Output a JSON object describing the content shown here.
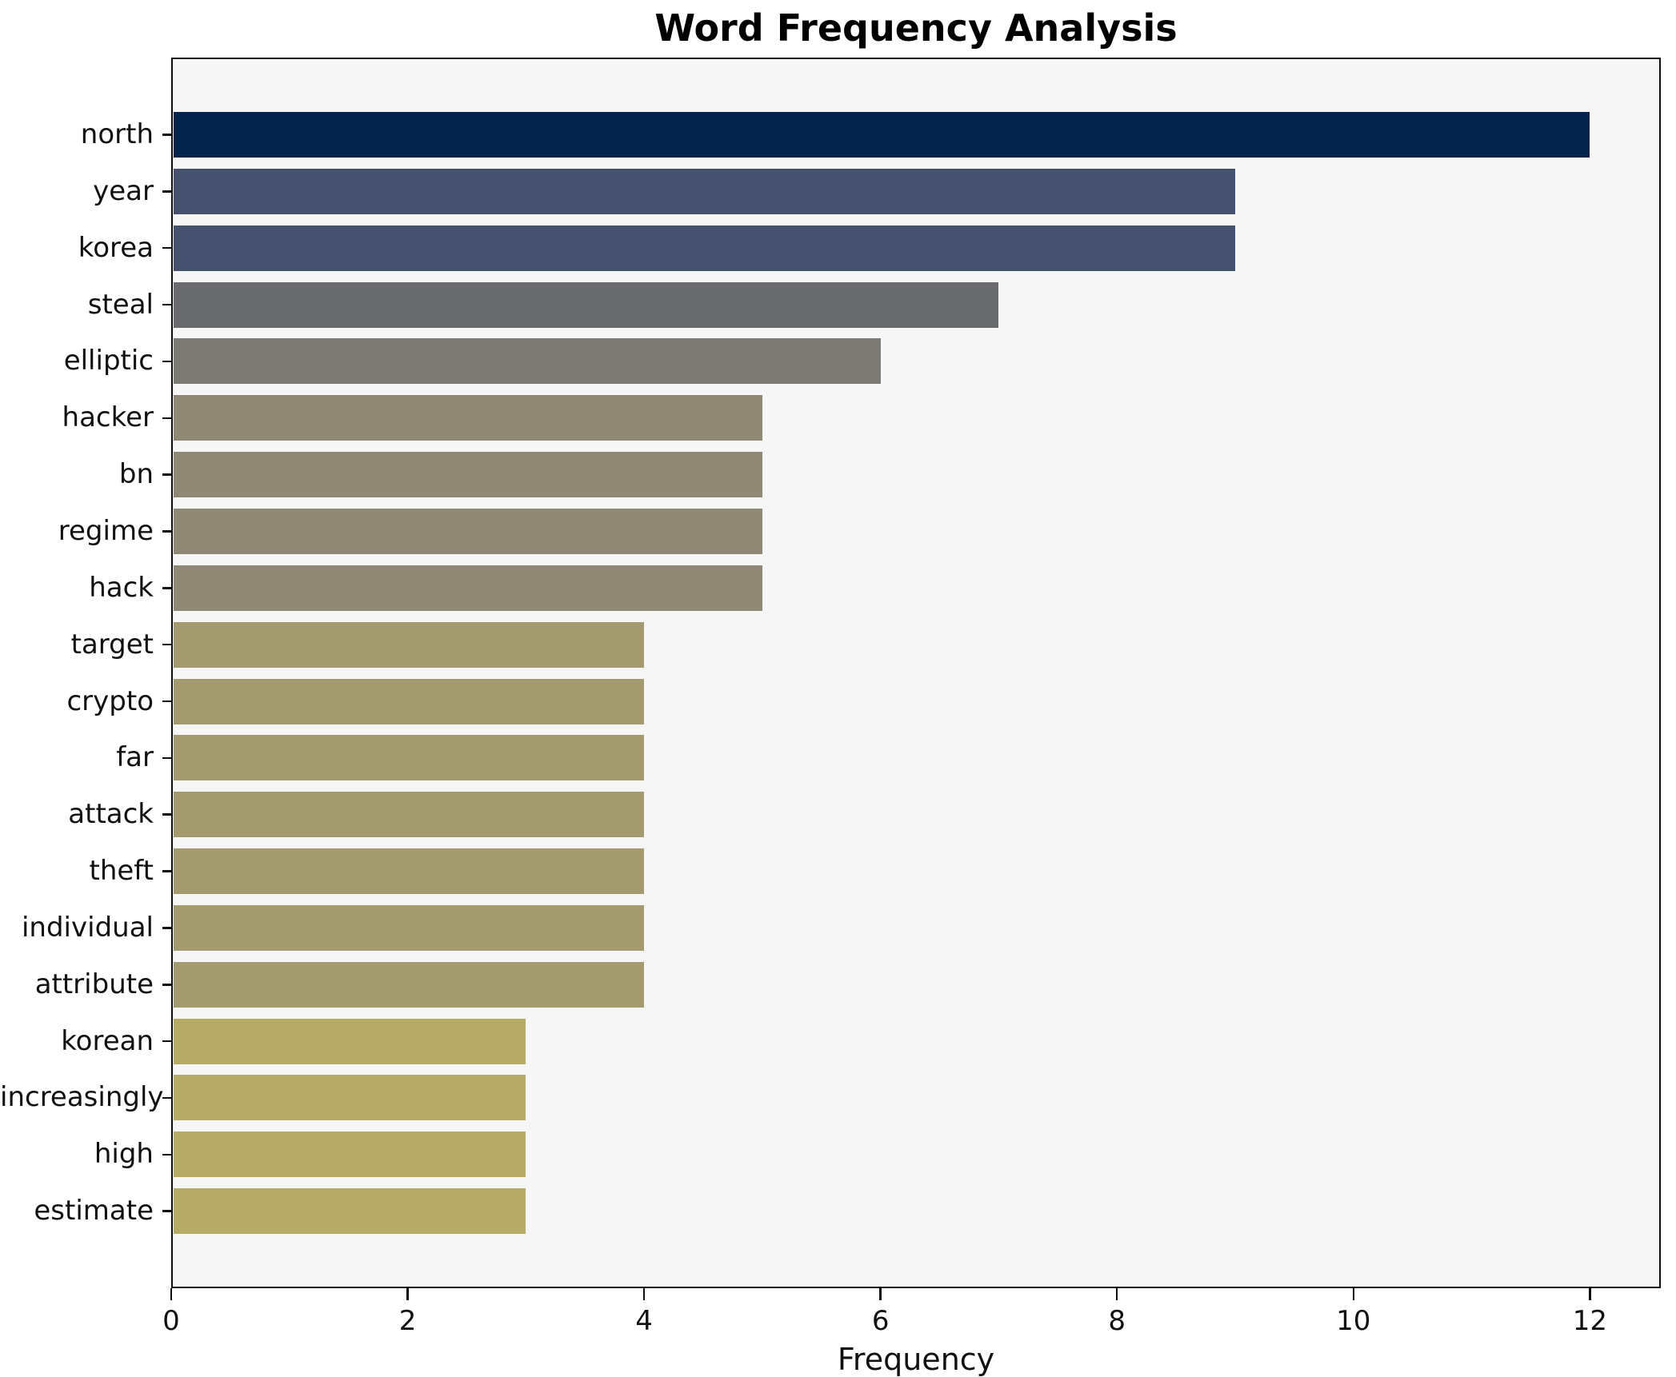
{
  "chart_data": {
    "type": "bar",
    "orientation": "horizontal",
    "title": "Word Frequency Analysis",
    "xlabel": "Frequency",
    "ylabel": "",
    "categories": [
      "north",
      "year",
      "korea",
      "steal",
      "elliptic",
      "hacker",
      "bn",
      "regime",
      "hack",
      "target",
      "crypto",
      "far",
      "attack",
      "theft",
      "individual",
      "attribute",
      "korean",
      "increasingly",
      "high",
      "estimate"
    ],
    "values": [
      12,
      9,
      9,
      7,
      6,
      5,
      5,
      5,
      5,
      4,
      4,
      4,
      4,
      4,
      4,
      4,
      3,
      3,
      3,
      3
    ],
    "xticks": [
      0,
      2,
      4,
      6,
      8,
      10,
      12
    ],
    "xlim": [
      0,
      12.6
    ],
    "grid": false,
    "legend": "none",
    "colors_by_value": {
      "12": "#02234c",
      "9": "#45516e",
      "7": "#696a6e",
      "6": "#7b7a73",
      "5": "#8e8875",
      "4": "#a39a70",
      "3": "#b5aa66"
    },
    "plot_background": "#f6f6f7",
    "figure_background": "#ffffff",
    "spine_color": "#0e0e0e"
  }
}
